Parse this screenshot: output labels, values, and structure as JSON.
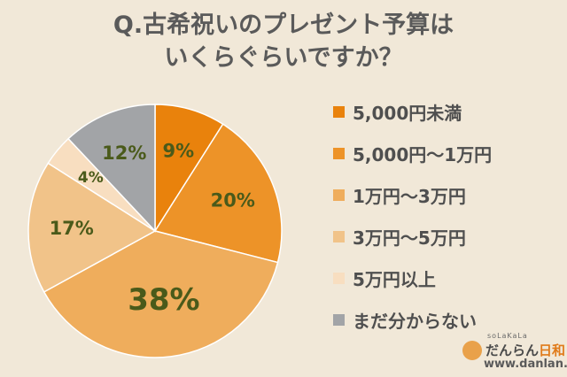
{
  "title": {
    "line1": "Q.古希祝いのプレゼント予算は",
    "line2": "いくらぐらいですか？"
  },
  "chart_data": {
    "type": "pie",
    "slices": [
      {
        "label": "5,000円未満",
        "value": 9,
        "display": "9%",
        "color": "#e9820c"
      },
      {
        "label": "5,000円〜1万円",
        "value": 20,
        "display": "20%",
        "color": "#ed9328"
      },
      {
        "label": "1万円〜3万円",
        "value": 38,
        "display": "38%",
        "color": "#efad5c"
      },
      {
        "label": "3万円〜5万円",
        "value": 17,
        "display": "17%",
        "color": "#f1c389"
      },
      {
        "label": "5万円以上",
        "value": 4,
        "display": "4%",
        "color": "#f8dec0"
      },
      {
        "label": "まだ分からない",
        "value": 12,
        "display": "12%",
        "color": "#a2a4a7"
      }
    ],
    "label_color": "#4a5a1a",
    "legend_position": "right"
  },
  "brand": {
    "sub": "soLaKaLa",
    "name_main": "だんらん",
    "name_accent": "日和",
    "url": "www.danlan.jp"
  }
}
